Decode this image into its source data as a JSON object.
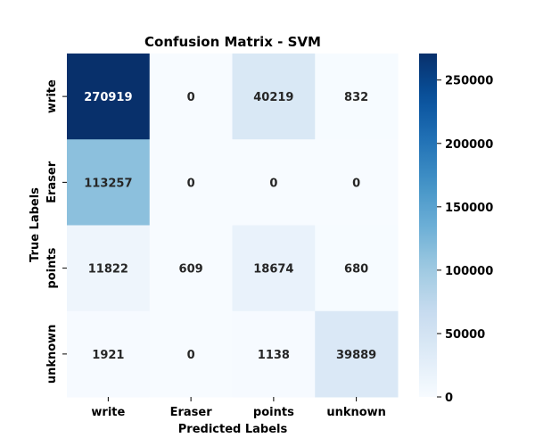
{
  "chart_data": {
    "type": "heatmap",
    "title": "Confusion Matrix - SVM",
    "xlabel": "Predicted Labels",
    "ylabel": "True Labels",
    "x_categories": [
      "write",
      "Eraser",
      "points",
      "unknown"
    ],
    "y_categories": [
      "write",
      "Eraser",
      "points",
      "unknown"
    ],
    "values": [
      [
        270919,
        0,
        40219,
        832
      ],
      [
        113257,
        0,
        0,
        0
      ],
      [
        11822,
        609,
        18674,
        680
      ],
      [
        1921,
        0,
        1138,
        39889
      ]
    ],
    "colormap": "Blues",
    "colorbar": {
      "min": 0,
      "max": 270919,
      "ticks": [
        0,
        50000,
        100000,
        150000,
        200000,
        250000
      ]
    },
    "colors": {
      "low": "#f7fbff",
      "high": "#08306b"
    }
  }
}
